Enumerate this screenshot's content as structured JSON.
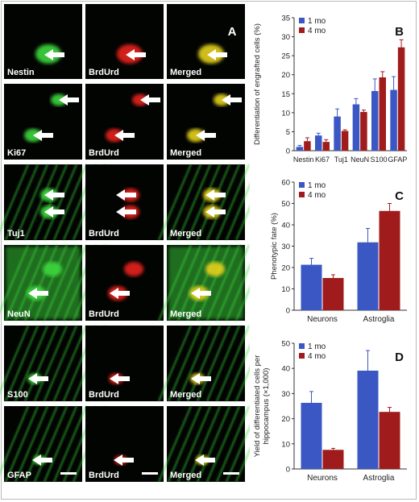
{
  "figure": {
    "panel_letters": [
      "A",
      "B",
      "C",
      "D"
    ],
    "image_rows": [
      {
        "stain": "Nestin",
        "bromo": "BrdUrd",
        "merged": "Merged"
      },
      {
        "stain": "Ki67",
        "bromo": "BrdUrd",
        "merged": "Merged"
      },
      {
        "stain": "Tuj1",
        "bromo": "BrdUrd",
        "merged": "Merged"
      },
      {
        "stain": "NeuN",
        "bromo": "BrdUrd",
        "merged": "Merged"
      },
      {
        "stain": "S100",
        "bromo": "BrdUrd",
        "merged": "Merged"
      },
      {
        "stain": "GFAP",
        "bromo": "BrdUrd",
        "merged": "Merged"
      }
    ],
    "colors": {
      "green_channel": "#3ed83e",
      "red_channel": "#e8231e",
      "merged_yellow": "#e6d21e",
      "series_1mo": "#3b57c4",
      "series_4mo": "#a01c1c"
    }
  },
  "chart_data": [
    {
      "panel": "B",
      "type": "bar",
      "categories": [
        "Nestin",
        "Ki67",
        "Tuj1",
        "NeuN",
        "S100",
        "GFAP"
      ],
      "series": [
        {
          "name": "1 mo",
          "values": [
            1,
            4,
            9,
            12.2,
            15.7,
            16
          ],
          "errors": [
            0.4,
            0.6,
            2,
            1.5,
            3.2,
            3.5
          ]
        },
        {
          "name": "4 mo",
          "values": [
            2.5,
            2.3,
            5.2,
            10.2,
            19.3,
            27.2
          ],
          "errors": [
            0.9,
            0.6,
            0.3,
            0.5,
            1.5,
            2
          ]
        }
      ],
      "xlabel": "",
      "ylabel": "Differentiation of engrafted cells (%)",
      "ylim": [
        0,
        35
      ],
      "yticks": [
        0,
        5,
        10,
        15,
        20,
        25,
        30,
        35
      ],
      "legend": "top-left"
    },
    {
      "panel": "C",
      "type": "bar",
      "categories": [
        "Neurons",
        "Astroglia"
      ],
      "series": [
        {
          "name": "1 mo",
          "values": [
            21.3,
            31.8
          ],
          "errors": [
            3,
            6.5
          ]
        },
        {
          "name": "4 mo",
          "values": [
            15.1,
            46.5
          ],
          "errors": [
            1.5,
            3.5
          ]
        }
      ],
      "xlabel": "",
      "ylabel": "Phenotypic fate (%)",
      "ylim": [
        0,
        60
      ],
      "yticks": [
        0,
        10,
        20,
        30,
        40,
        50,
        60
      ],
      "legend": "top-left"
    },
    {
      "panel": "D",
      "type": "bar",
      "categories": [
        "Neurons",
        "Astroglia"
      ],
      "series": [
        {
          "name": "1 mo",
          "values": [
            26.3,
            39.1
          ],
          "errors": [
            4.5,
            8
          ]
        },
        {
          "name": "4 mo",
          "values": [
            7.6,
            22.7
          ],
          "errors": [
            0.6,
            1.8
          ]
        }
      ],
      "xlabel": "",
      "ylabel": "Yield of differentiated cells per hippocampus (×1,000)",
      "ylim": [
        0,
        50
      ],
      "yticks": [
        0,
        10,
        20,
        30,
        40,
        50
      ],
      "legend": "top-left"
    }
  ]
}
